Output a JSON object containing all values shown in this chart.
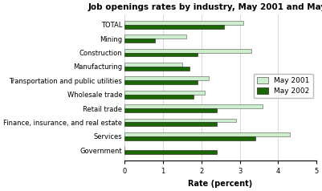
{
  "title": "Job openings rates by industry, May 2001 and May 2002",
  "categories": [
    "TOTAL",
    "Mining",
    "Construction",
    "Manufacturing",
    "Transportation and public utilities",
    "Wholesale trade",
    "Retail trade",
    "Finance, insurance, and real estate",
    "Services",
    "Government"
  ],
  "may2001": [
    3.1,
    1.6,
    3.3,
    1.5,
    2.2,
    2.1,
    3.6,
    2.9,
    4.3,
    0.0
  ],
  "may2002": [
    2.6,
    0.8,
    1.9,
    1.7,
    1.9,
    1.8,
    2.4,
    2.4,
    3.4,
    2.4
  ],
  "color_2001": "#cceecc",
  "color_2002": "#1a6600",
  "xlabel": "Rate (percent)",
  "xlim": [
    0,
    5
  ],
  "xticks": [
    0,
    1,
    2,
    3,
    4,
    5
  ],
  "bar_height": 0.28,
  "legend_labels": [
    "May 2001",
    "May 2002"
  ],
  "background_color": "#ffffff",
  "title_fontsize": 7.5,
  "label_fontsize": 7,
  "tick_fontsize": 6,
  "legend_fontsize": 6.5
}
